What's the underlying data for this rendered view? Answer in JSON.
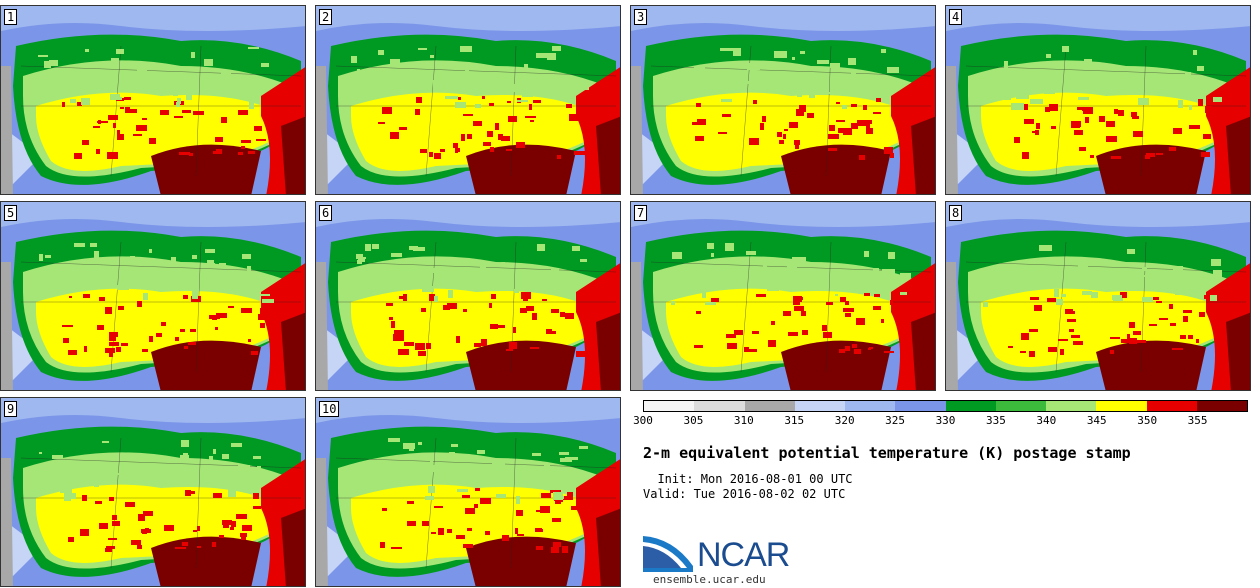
{
  "panels": [
    {
      "label": "1"
    },
    {
      "label": "2"
    },
    {
      "label": "3"
    },
    {
      "label": "4"
    },
    {
      "label": "5"
    },
    {
      "label": "6"
    },
    {
      "label": "7"
    },
    {
      "label": "8"
    },
    {
      "label": "9"
    },
    {
      "label": "10"
    }
  ],
  "colorbar": {
    "ticks": [
      "300",
      "305",
      "310",
      "315",
      "320",
      "325",
      "330",
      "335",
      "340",
      "345",
      "350",
      "355"
    ],
    "colors": [
      "#f5f5f5",
      "#dcdcdc",
      "#a8a8a8",
      "#c6d4f5",
      "#a0b8f0",
      "#7b96e8",
      "#009a22",
      "#3cba3c",
      "#a6e676",
      "#ffff00",
      "#e60000",
      "#7a0000"
    ]
  },
  "title": "2-m equivalent potential temperature (K) postage stamp",
  "init": "  Init: Mon 2016-08-01 00 UTC",
  "valid": "Valid: Tue 2016-08-02 02 UTC",
  "logo": "NCAR",
  "url": "ensemble.ucar.edu"
}
